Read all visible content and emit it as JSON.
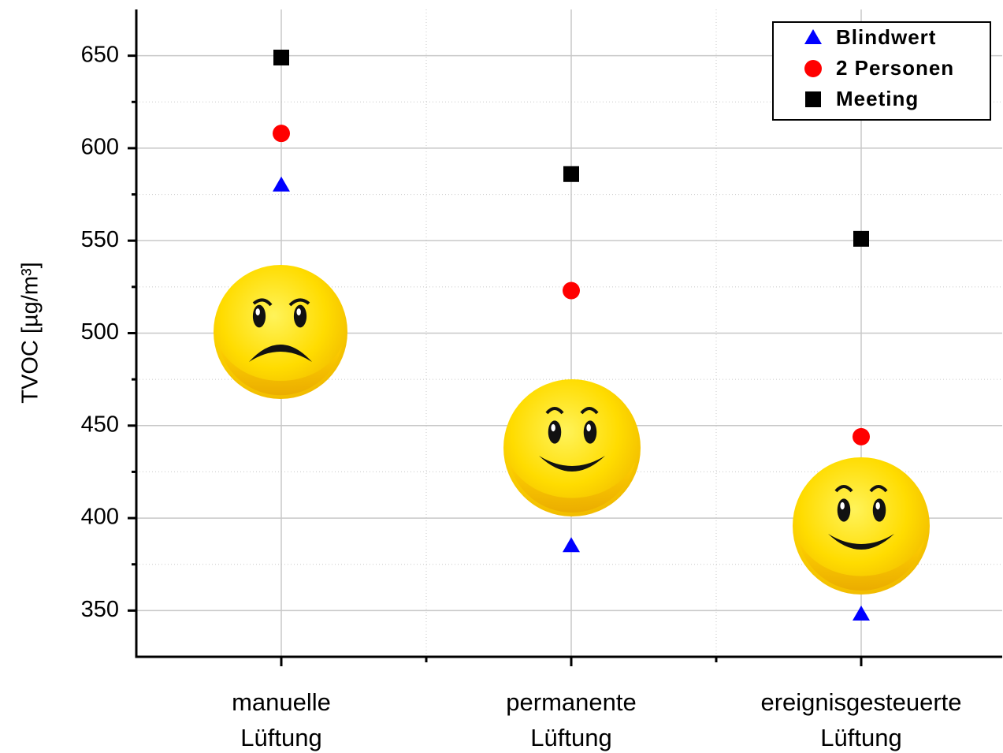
{
  "chart_data": {
    "type": "scatter",
    "y_label": "TVOC [µg/m³]",
    "categories": [
      [
        "manuelle",
        "Lüftung"
      ],
      [
        "permanente",
        "Lüftung"
      ],
      [
        "ereignisgesteuerte",
        "Lüftung"
      ]
    ],
    "series": [
      {
        "name": "Blindwert",
        "color": "#0000ff",
        "marker": "triangle",
        "values": [
          580,
          385,
          348
        ]
      },
      {
        "name": "2 Personen",
        "color": "#ff0000",
        "marker": "circle",
        "values": [
          608,
          523,
          444
        ]
      },
      {
        "name": "Meeting",
        "color": "#000000",
        "marker": "square",
        "values": [
          649,
          586,
          551
        ]
      }
    ],
    "ylim": [
      325,
      675
    ],
    "yticks": [
      350,
      400,
      450,
      500,
      550,
      600,
      650
    ],
    "yminorticks": [
      375,
      425,
      475,
      525,
      575,
      625
    ],
    "grid": true,
    "legend": "upper right"
  }
}
